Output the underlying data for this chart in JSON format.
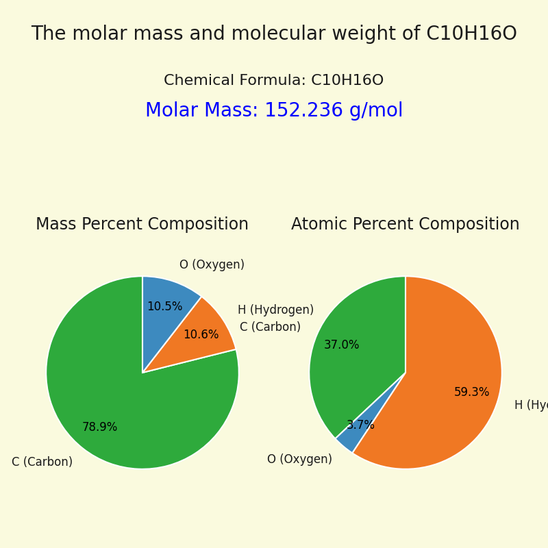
{
  "title": "The molar mass and molecular weight of C10H16O",
  "chemical_formula": "Chemical Formula: C10H16O",
  "molar_mass": "Molar Mass: 152.236 g/mol",
  "background_color": "#FAFADE",
  "title_fontsize": 20,
  "formula_fontsize": 16,
  "molar_mass_fontsize": 20,
  "molar_mass_color": "blue",
  "text_color": "#1a1a1a",
  "mass_title": "Mass Percent Composition",
  "atomic_title": "Atomic Percent Composition",
  "subtitle_fontsize": 17,
  "mass_labels": [
    "C (Carbon)",
    "H (Hydrogen)",
    "O (Oxygen)"
  ],
  "mass_values": [
    78.9,
    10.6,
    10.5
  ],
  "mass_colors": [
    "#2eaa3c",
    "#f07823",
    "#3d8abf"
  ],
  "atomic_labels": [
    "C (Carbon)",
    "H (Hydrogen)",
    "O (Oxygen)"
  ],
  "atomic_values": [
    37.0,
    59.3,
    3.7
  ],
  "atomic_colors": [
    "#2eaa3c",
    "#f07823",
    "#3d8abf"
  ],
  "pie_label_fontsize": 12,
  "pie_pct_fontsize": 12,
  "mass_startangle": 90,
  "atomic_startangle": 90
}
